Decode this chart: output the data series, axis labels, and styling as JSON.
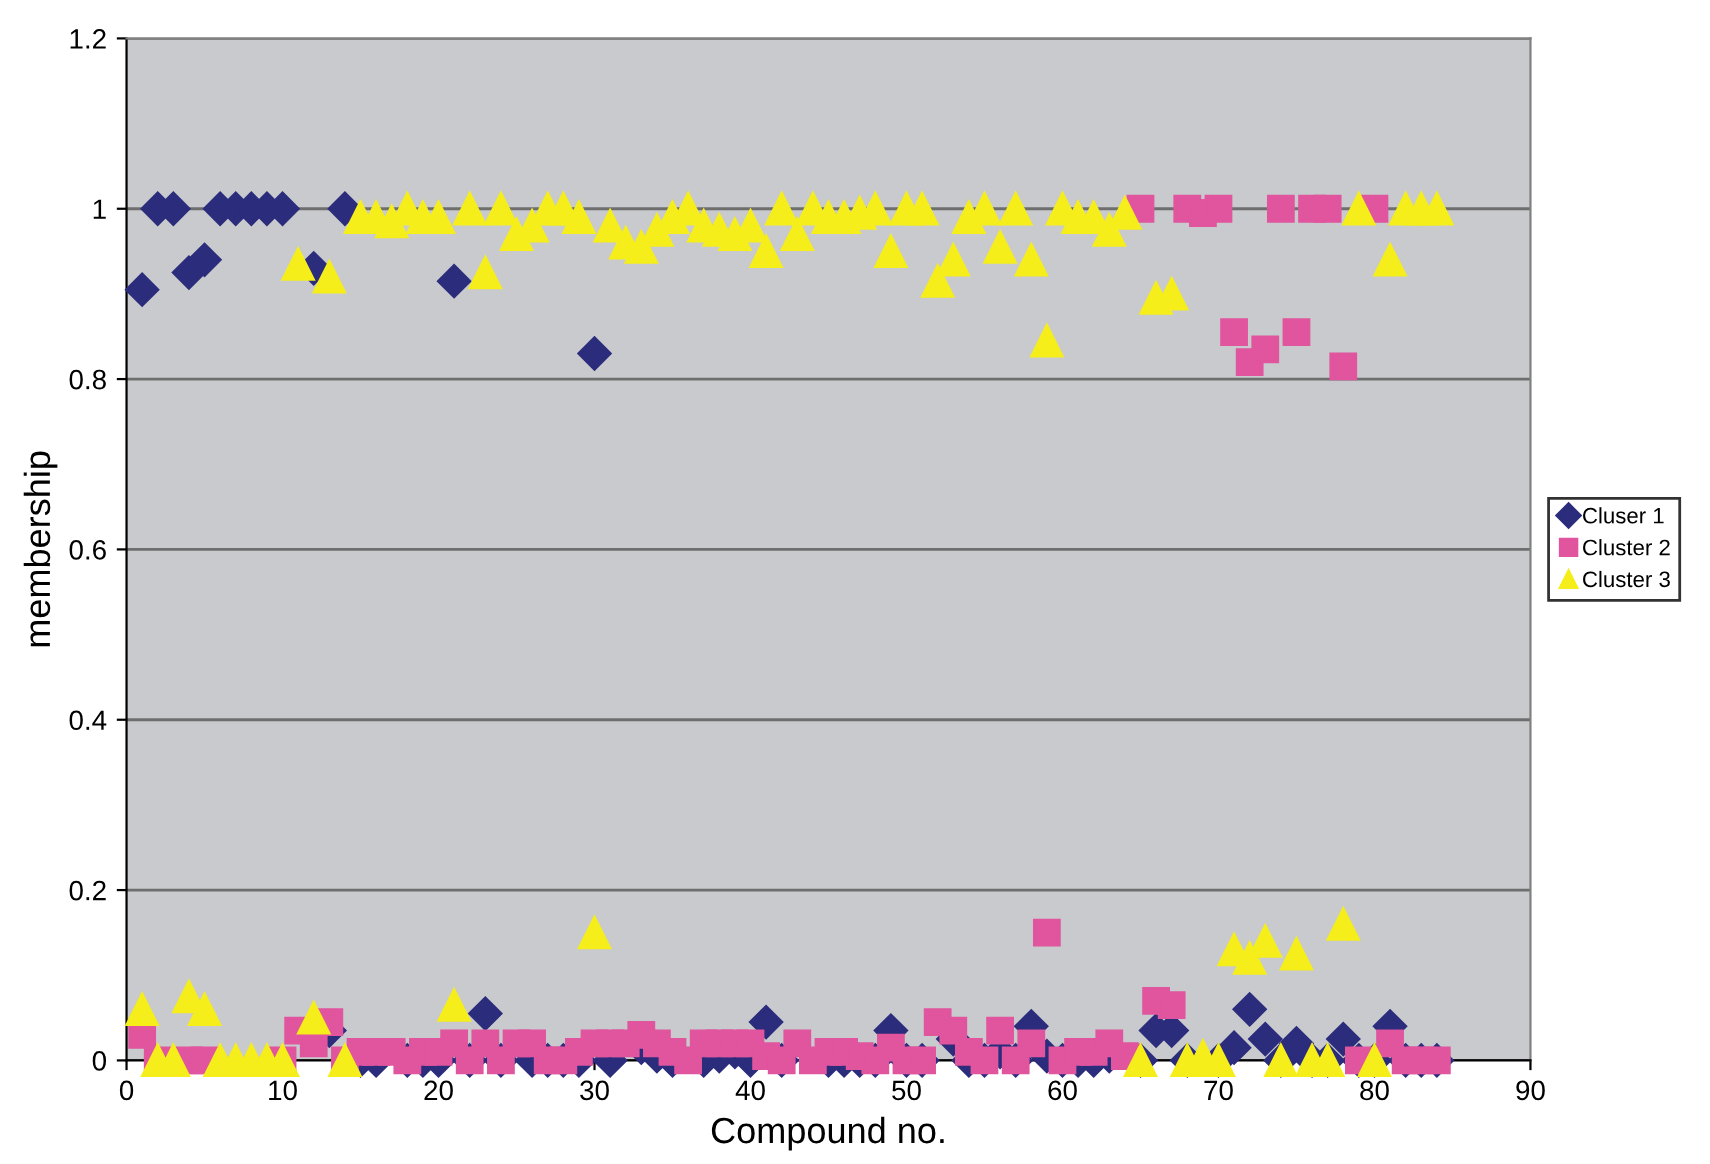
{
  "chart_data": {
    "type": "scatter",
    "xlabel": "Compound no.",
    "ylabel": "membership",
    "x": [
      1,
      2,
      3,
      4,
      5,
      6,
      7,
      8,
      9,
      10,
      11,
      12,
      13,
      14,
      15,
      16,
      17,
      18,
      19,
      20,
      21,
      22,
      23,
      24,
      25,
      26,
      27,
      28,
      29,
      30,
      31,
      32,
      33,
      34,
      35,
      36,
      37,
      38,
      39,
      40,
      41,
      42,
      43,
      44,
      45,
      46,
      47,
      48,
      49,
      50,
      51,
      52,
      53,
      54,
      55,
      56,
      57,
      58,
      59,
      60,
      61,
      62,
      63,
      64,
      65,
      66,
      67,
      68,
      69,
      70,
      71,
      72,
      73,
      74,
      75,
      76,
      77,
      78,
      79,
      80,
      81,
      82,
      83,
      84
    ],
    "series": [
      {
        "name": "Cluser 1",
        "color": "#2b2c7c",
        "marker": "diamond",
        "values": [
          0.905,
          1,
          1,
          0.925,
          0.94,
          1,
          1,
          1,
          1,
          1,
          null,
          0.93,
          0.035,
          1,
          0,
          0,
          null,
          0,
          0,
          0,
          0.915,
          0,
          0.055,
          0,
          null,
          0,
          0,
          0,
          0,
          0.83,
          0,
          null,
          0.015,
          0.005,
          0,
          null,
          0,
          0.005,
          0.01,
          0,
          0.045,
          0,
          null,
          null,
          0,
          0,
          0,
          0,
          0.035,
          0,
          0,
          null,
          0.025,
          0,
          0,
          0.01,
          0,
          0.04,
          0.005,
          0,
          0,
          0,
          0.005,
          null,
          0,
          0.035,
          0.035,
          0,
          null,
          0,
          0.015,
          0.06,
          0.025,
          0,
          0.02,
          0,
          0,
          0.025,
          0,
          0,
          0.04,
          0,
          0,
          0
        ]
      },
      {
        "name": "Cluster 2",
        "color": "#e0559e",
        "marker": "square",
        "values": [
          0.03,
          0,
          null,
          0,
          0,
          null,
          null,
          null,
          null,
          0,
          0.035,
          0.02,
          0.045,
          0,
          0.01,
          0.01,
          0.01,
          0,
          0.01,
          0.01,
          0.02,
          0,
          0.02,
          0,
          0.02,
          0.02,
          0,
          0,
          0.01,
          0.02,
          0.02,
          0.02,
          0.03,
          0.02,
          0.01,
          0,
          0.02,
          0.02,
          0.02,
          0.02,
          0.005,
          0,
          0.02,
          0,
          0.01,
          0.01,
          0.005,
          0,
          0.015,
          0,
          0,
          0.045,
          0.035,
          0.01,
          0,
          0.035,
          0,
          0.02,
          0.15,
          0,
          0.01,
          0.01,
          0.02,
          0.005,
          1,
          0.07,
          0.065,
          1,
          0.995,
          1,
          0.855,
          0.82,
          0.835,
          1,
          0.855,
          1,
          1,
          0.815,
          0,
          1,
          0.02,
          0,
          0,
          0
        ]
      },
      {
        "name": "Cluster 3",
        "color": "#f5ee1a",
        "marker": "triangle",
        "values": [
          0.06,
          0,
          0,
          0.075,
          0.06,
          0,
          0,
          0,
          0,
          0,
          0.935,
          0.05,
          0.92,
          0,
          0.99,
          0.99,
          0.985,
          1,
          0.99,
          0.99,
          0.065,
          1,
          0.925,
          1,
          0.97,
          0.98,
          1,
          1,
          0.99,
          0.15,
          0.98,
          0.96,
          0.955,
          0.975,
          0.99,
          1,
          0.98,
          0.975,
          0.97,
          0.98,
          0.95,
          1,
          0.97,
          1,
          0.99,
          0.99,
          0.995,
          1,
          0.95,
          1,
          1,
          0.915,
          0.94,
          0.99,
          1,
          0.955,
          1,
          0.94,
          0.845,
          1,
          0.99,
          0.99,
          0.975,
          0.995,
          0,
          0.895,
          0.9,
          0,
          0.005,
          0,
          0.13,
          0.12,
          0.14,
          0,
          0.125,
          0,
          0,
          0.16,
          1,
          0,
          0.94,
          1,
          1,
          1
        ]
      }
    ],
    "xlim": [
      0,
      90
    ],
    "xticks": [
      0,
      10,
      20,
      30,
      40,
      50,
      60,
      70,
      80,
      90
    ],
    "ylim": [
      0,
      1.2
    ],
    "yticks": [
      0,
      0.2,
      0.4,
      0.6,
      0.8,
      1,
      1.2
    ],
    "grid": "y",
    "legend": "right"
  }
}
